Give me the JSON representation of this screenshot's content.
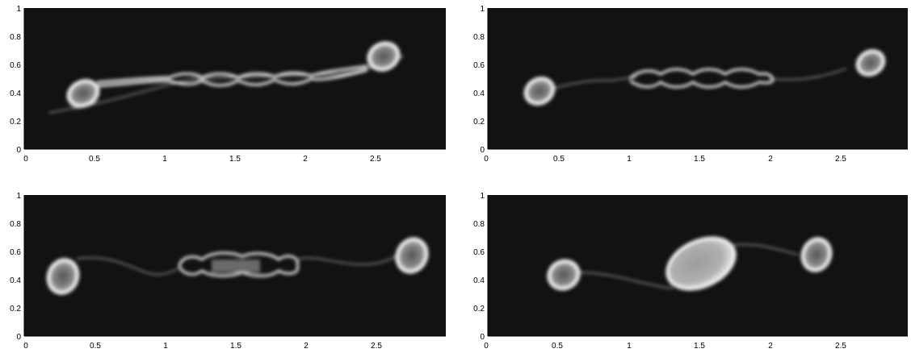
{
  "figure": {
    "panels": [
      {
        "id": "p1",
        "x_ticks": [
          "0",
          "0.5",
          "1",
          "1.5",
          "2",
          "2.5"
        ],
        "y_ticks": [
          "0",
          "0.2",
          "0.4",
          "0.6",
          "0.8",
          "1"
        ],
        "xlim": [
          0,
          3
        ],
        "ylim": [
          0,
          1
        ]
      },
      {
        "id": "p2",
        "x_ticks": [
          "0",
          "0.5",
          "1",
          "1.5",
          "2",
          "2.5"
        ],
        "y_ticks": [
          "0",
          "0.2",
          "0.4",
          "0.6",
          "0.8",
          "1"
        ],
        "xlim": [
          0,
          3
        ],
        "ylim": [
          0,
          1
        ]
      },
      {
        "id": "p3",
        "x_ticks": [
          "0",
          "0.5",
          "1",
          "1.5",
          "2",
          "2.5"
        ],
        "y_ticks": [
          "0",
          "0.2",
          "0.4",
          "0.6",
          "0.8",
          "1"
        ],
        "xlim": [
          0,
          3
        ],
        "ylim": [
          0,
          1
        ]
      },
      {
        "id": "p4",
        "x_ticks": [
          "0",
          "0.5",
          "1",
          "1.5",
          "2",
          "2.5"
        ],
        "y_ticks": [
          "0",
          "0.2",
          "0.4",
          "0.6",
          "0.8",
          "1"
        ],
        "xlim": [
          0,
          3
        ],
        "ylim": [
          0,
          1
        ]
      }
    ]
  }
}
